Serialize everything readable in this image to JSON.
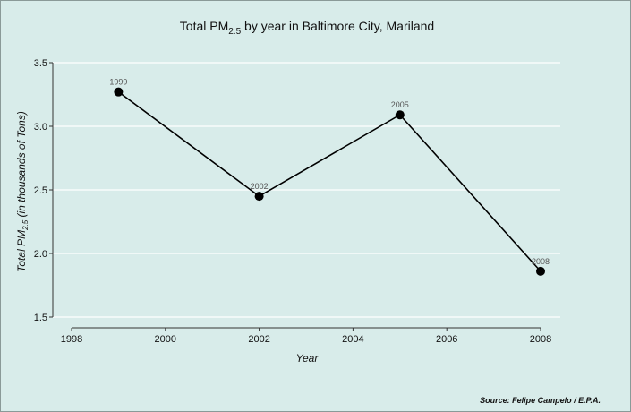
{
  "chart_data": {
    "type": "line",
    "title_main": "Total PM",
    "title_sub": "2.5",
    "title_rest": " by year in Baltimore City, Mariland",
    "ylabel_main": "Total PM",
    "ylabel_sub": "2.5",
    "ylabel_rest": " (in thousands of Tons)",
    "xlabel": "Year",
    "x": [
      1999,
      2002,
      2005,
      2008
    ],
    "y": [
      3.27,
      2.45,
      3.09,
      1.86
    ],
    "point_labels": [
      "1999",
      "2002",
      "2005",
      "2008"
    ],
    "xlim": [
      1998,
      2008
    ],
    "ylim": [
      1.5,
      3.5
    ],
    "xticks": [
      "1998",
      "2000",
      "2002",
      "2004",
      "2006",
      "2008"
    ],
    "yticks": [
      "1.5",
      "2.0",
      "2.5",
      "3.0",
      "3.5"
    ],
    "grid": "horizontal",
    "line_color": "#000000",
    "grid_color": "#ffffff",
    "background_color": "#d8ecea"
  },
  "footer": {
    "source": "Source: Felipe Campelo / E.P.A."
  }
}
